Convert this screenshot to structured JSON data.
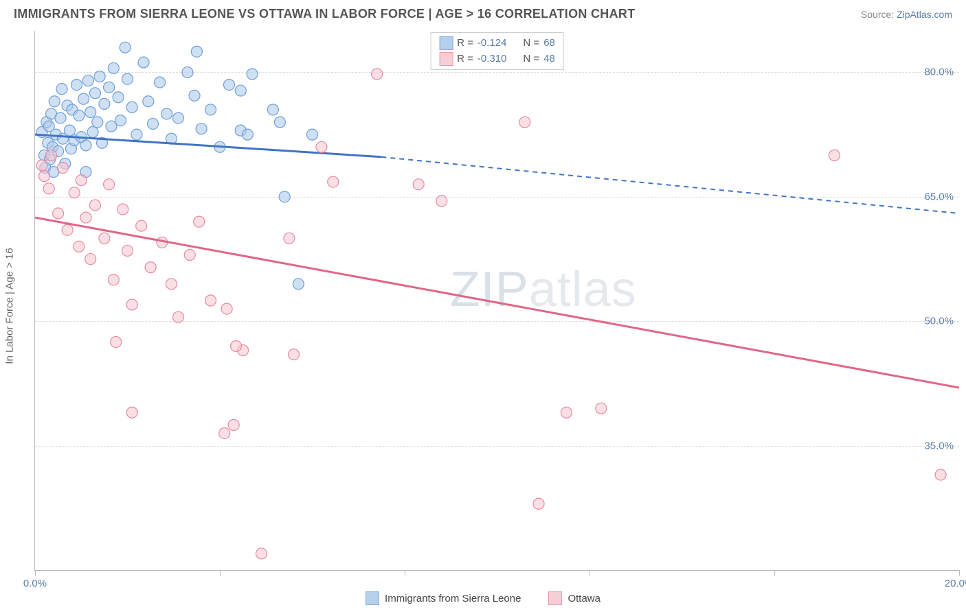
{
  "title": "IMMIGRANTS FROM SIERRA LEONE VS OTTAWA IN LABOR FORCE | AGE > 16 CORRELATION CHART",
  "source_prefix": "Source: ",
  "source_link": "ZipAtlas.com",
  "ylabel": "In Labor Force | Age > 16",
  "watermark_a": "ZIP",
  "watermark_b": "atlas",
  "chart": {
    "type": "scatter",
    "xlim": [
      0,
      20
    ],
    "ylim": [
      20,
      85
    ],
    "x_ticks": [
      0,
      4,
      8,
      12,
      16,
      20
    ],
    "x_tick_labels": [
      "0.0%",
      "",
      "",
      "",
      "",
      "20.0%"
    ],
    "y_gridlines": [
      35,
      50,
      65,
      80
    ],
    "y_tick_labels": [
      "35.0%",
      "50.0%",
      "65.0%",
      "80.0%"
    ],
    "grid_color": "#e0e0e0",
    "background_color": "#ffffff",
    "marker_radius": 8,
    "marker_opacity": 0.55,
    "series": [
      {
        "name": "Immigrants from Sierra Leone",
        "color_fill": "#a9c7ea",
        "color_stroke": "#6f9fd8",
        "line_color": "#3f74c6",
        "R": "-0.124",
        "N": "68",
        "regression": {
          "x1": 0,
          "y1": 72.5,
          "x2": 7.5,
          "y2": 69.8,
          "dash_x2": 20,
          "dash_y2": 63.0
        },
        "points": [
          [
            0.15,
            72.8
          ],
          [
            0.2,
            70.0
          ],
          [
            0.22,
            68.5
          ],
          [
            0.25,
            74.0
          ],
          [
            0.28,
            71.5
          ],
          [
            0.3,
            73.5
          ],
          [
            0.32,
            69.5
          ],
          [
            0.35,
            75.0
          ],
          [
            0.38,
            71.0
          ],
          [
            0.4,
            68.0
          ],
          [
            0.42,
            76.5
          ],
          [
            0.45,
            72.5
          ],
          [
            0.5,
            70.5
          ],
          [
            0.55,
            74.5
          ],
          [
            0.58,
            78.0
          ],
          [
            0.6,
            72.0
          ],
          [
            0.65,
            69.0
          ],
          [
            0.7,
            76.0
          ],
          [
            0.75,
            73.0
          ],
          [
            0.78,
            70.8
          ],
          [
            0.8,
            75.5
          ],
          [
            0.85,
            71.8
          ],
          [
            0.9,
            78.5
          ],
          [
            0.95,
            74.8
          ],
          [
            1.0,
            72.2
          ],
          [
            1.05,
            76.8
          ],
          [
            1.1,
            71.2
          ],
          [
            1.15,
            79.0
          ],
          [
            1.2,
            75.2
          ],
          [
            1.25,
            72.8
          ],
          [
            1.3,
            77.5
          ],
          [
            1.35,
            74.0
          ],
          [
            1.4,
            79.5
          ],
          [
            1.45,
            71.5
          ],
          [
            1.5,
            76.2
          ],
          [
            1.6,
            78.2
          ],
          [
            1.65,
            73.5
          ],
          [
            1.7,
            80.5
          ],
          [
            1.8,
            77.0
          ],
          [
            1.85,
            74.2
          ],
          [
            1.95,
            83.0
          ],
          [
            2.0,
            79.2
          ],
          [
            2.1,
            75.8
          ],
          [
            2.2,
            72.5
          ],
          [
            2.35,
            81.2
          ],
          [
            2.45,
            76.5
          ],
          [
            2.55,
            73.8
          ],
          [
            2.7,
            78.8
          ],
          [
            2.85,
            75.0
          ],
          [
            2.95,
            72.0
          ],
          [
            3.1,
            74.5
          ],
          [
            3.3,
            80.0
          ],
          [
            3.45,
            77.2
          ],
          [
            3.5,
            82.5
          ],
          [
            3.6,
            73.2
          ],
          [
            3.8,
            75.5
          ],
          [
            4.0,
            71.0
          ],
          [
            4.2,
            78.5
          ],
          [
            4.45,
            73.0
          ],
          [
            4.45,
            77.8
          ],
          [
            4.6,
            72.5
          ],
          [
            4.7,
            79.8
          ],
          [
            5.15,
            75.5
          ],
          [
            5.3,
            74.0
          ],
          [
            5.4,
            65.0
          ],
          [
            5.7,
            54.5
          ],
          [
            6.0,
            72.5
          ],
          [
            1.1,
            68.0
          ]
        ]
      },
      {
        "name": "Ottawa",
        "color_fill": "#f6c6d0",
        "color_stroke": "#e78aa0",
        "line_color": "#e06688",
        "R": "-0.310",
        "N": "48",
        "regression": {
          "x1": 0,
          "y1": 62.5,
          "x2": 20,
          "y2": 42.0
        },
        "points": [
          [
            0.15,
            68.8
          ],
          [
            0.2,
            67.5
          ],
          [
            0.35,
            70.0
          ],
          [
            0.3,
            66.0
          ],
          [
            0.5,
            63.0
          ],
          [
            0.6,
            68.5
          ],
          [
            0.7,
            61.0
          ],
          [
            0.85,
            65.5
          ],
          [
            0.95,
            59.0
          ],
          [
            1.0,
            67.0
          ],
          [
            1.1,
            62.5
          ],
          [
            1.2,
            57.5
          ],
          [
            1.3,
            64.0
          ],
          [
            1.5,
            60.0
          ],
          [
            1.6,
            66.5
          ],
          [
            1.7,
            55.0
          ],
          [
            1.75,
            47.5
          ],
          [
            1.9,
            63.5
          ],
          [
            2.0,
            58.5
          ],
          [
            2.1,
            52.0
          ],
          [
            2.3,
            61.5
          ],
          [
            2.5,
            56.5
          ],
          [
            2.75,
            59.5
          ],
          [
            2.95,
            54.5
          ],
          [
            3.1,
            50.5
          ],
          [
            3.35,
            58.0
          ],
          [
            3.55,
            62.0
          ],
          [
            3.8,
            52.5
          ],
          [
            4.1,
            36.5
          ],
          [
            4.15,
            51.5
          ],
          [
            4.3,
            37.5
          ],
          [
            4.5,
            46.5
          ],
          [
            4.35,
            47.0
          ],
          [
            4.9,
            22.0
          ],
          [
            5.5,
            60.0
          ],
          [
            5.6,
            46.0
          ],
          [
            6.2,
            71.0
          ],
          [
            6.45,
            66.8
          ],
          [
            7.4,
            79.8
          ],
          [
            8.3,
            66.5
          ],
          [
            8.8,
            64.5
          ],
          [
            10.6,
            74.0
          ],
          [
            11.5,
            39.0
          ],
          [
            12.25,
            39.5
          ],
          [
            17.3,
            70.0
          ],
          [
            19.6,
            31.5
          ],
          [
            10.9,
            28.0
          ],
          [
            2.1,
            39.0
          ]
        ]
      }
    ]
  },
  "bottom_legend": [
    {
      "label": "Immigrants from Sierra Leone",
      "fill": "#a9c7ea",
      "stroke": "#6f9fd8"
    },
    {
      "label": "Ottawa",
      "fill": "#f6c6d0",
      "stroke": "#e78aa0"
    }
  ]
}
